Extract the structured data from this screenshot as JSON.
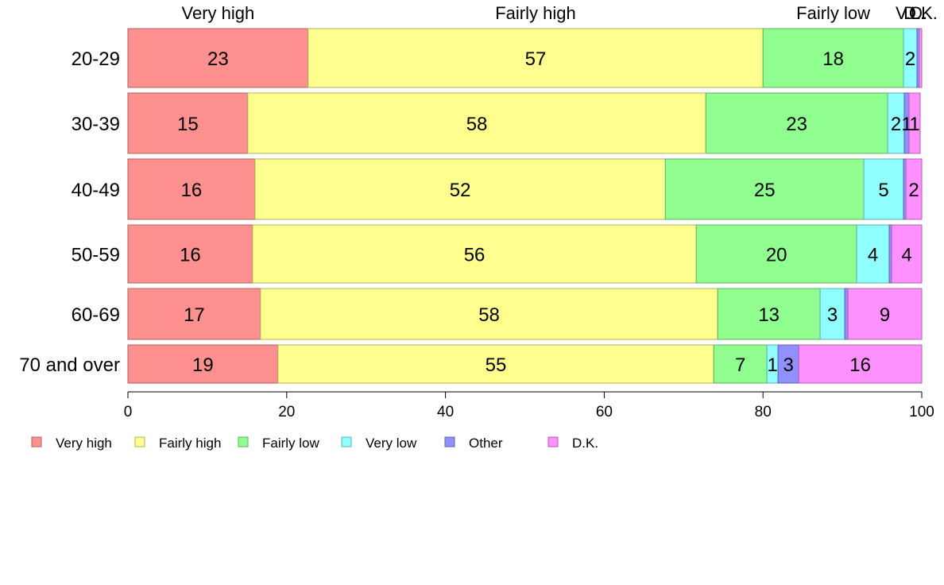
{
  "chart_data": {
    "type": "bar",
    "orientation": "horizontal",
    "stacked": true,
    "categories": [
      "20-29",
      "30-39",
      "40-49",
      "50-59",
      "60-69",
      "70 and over"
    ],
    "series": [
      {
        "name": "Very high",
        "color": "#ff9090",
        "values": [
          22.7,
          15.1,
          16.0,
          15.7,
          16.7,
          18.9
        ]
      },
      {
        "name": "Fairly high",
        "color": "#ffff90",
        "values": [
          57.3,
          57.7,
          51.7,
          55.9,
          57.6,
          54.9
        ]
      },
      {
        "name": "Fairly low",
        "color": "#90ff90",
        "values": [
          17.7,
          22.9,
          25.0,
          20.2,
          12.9,
          6.7
        ]
      },
      {
        "name": "Very low",
        "color": "#90ffff",
        "values": [
          1.7,
          2.1,
          5.0,
          4.1,
          3.1,
          1.4
        ]
      },
      {
        "name": "Other",
        "color": "#9090ff",
        "values": [
          0.3,
          0.6,
          0.3,
          0.3,
          0.4,
          2.6
        ]
      },
      {
        "name": "D.K.",
        "color": "#ff90ff",
        "values": [
          0.3,
          1.4,
          2.0,
          3.8,
          9.3,
          15.5
        ]
      }
    ],
    "data_labels": [
      [
        "23",
        "57",
        "18",
        "2",
        "",
        ""
      ],
      [
        "15",
        "58",
        "23",
        "2",
        "1",
        "1"
      ],
      [
        "16",
        "52",
        "25",
        "5",
        "",
        "2"
      ],
      [
        "16",
        "56",
        "20",
        "4",
        "",
        "4"
      ],
      [
        "17",
        "58",
        "13",
        "3",
        "",
        "9"
      ],
      [
        "19",
        "55",
        "7",
        "1",
        "3",
        "16"
      ]
    ],
    "top_labels": [
      "Very high",
      "Fairly high",
      "Fairly low",
      "V.L.",
      "O.",
      "D.K."
    ],
    "xlim": [
      0,
      100
    ],
    "xticks": [
      "0",
      "20",
      "40",
      "60",
      "80",
      "100"
    ],
    "legend": [
      "Very high",
      "Fairly high",
      "Fairly low",
      "Very low",
      "Other",
      "D.K."
    ],
    "legend_position": "bottom",
    "grid": false,
    "title": "",
    "xlabel": "",
    "ylabel": ""
  }
}
